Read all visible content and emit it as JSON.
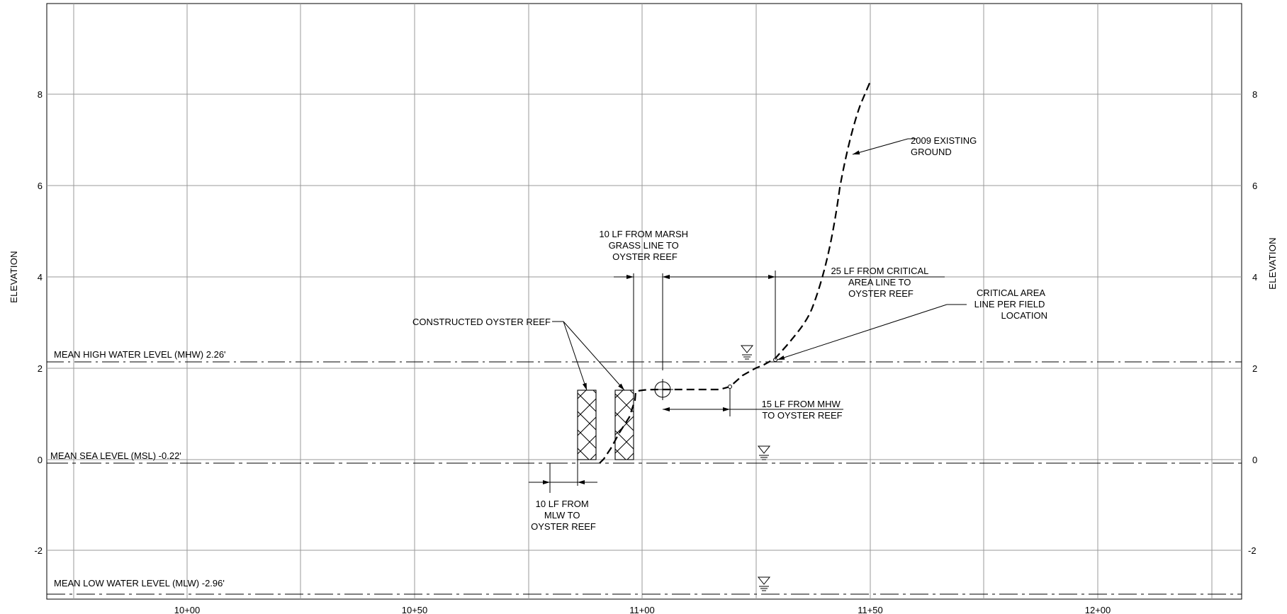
{
  "axes": {
    "left_title": "ELEVATION",
    "right_title": "ELEVATION",
    "y_ticks": [
      {
        "value": 8,
        "label": "8"
      },
      {
        "value": 6,
        "label": "6"
      },
      {
        "value": 4,
        "label": "4"
      },
      {
        "value": 2,
        "label": "2"
      },
      {
        "value": 0,
        "label": "0"
      },
      {
        "value": -2,
        "label": "-2"
      }
    ],
    "x_ticks": [
      {
        "value": 1000,
        "label": "10+00"
      },
      {
        "value": 1050,
        "label": "10+50"
      },
      {
        "value": 1100,
        "label": "11+00"
      },
      {
        "value": 1150,
        "label": "11+50"
      },
      {
        "value": 1200,
        "label": "12+00"
      }
    ]
  },
  "water_levels": {
    "mhw": {
      "label": "MEAN HIGH WATER LEVEL (MHW) 2.26'",
      "elevation": 2.26
    },
    "msl": {
      "label": "MEAN SEA LEVEL (MSL) -0.22'",
      "elevation": -0.22
    },
    "mlw": {
      "label": "MEAN LOW WATER LEVEL (MLW) -2.96'",
      "elevation": -2.96
    }
  },
  "callouts": {
    "existing_ground": [
      "2009 EXISTING",
      "GROUND"
    ],
    "marsh_grass": [
      "10 LF FROM MARSH",
      "GRASS LINE TO",
      "OYSTER REEF"
    ],
    "critical_area_dim": [
      "25 LF FROM  CRITICAL",
      "AREA LINE TO",
      "OYSTER REEF"
    ],
    "critical_area_line": [
      "CRITICAL AREA",
      "LINE PER FIELD",
      "LOCATION"
    ],
    "constructed_reef": "CONSTRUCTED OYSTER REEF",
    "mhw_dim": [
      "15 LF FROM MHW",
      "TO OYSTER REEF"
    ],
    "mlw_dim": [
      "10 LF FROM",
      "MLW TO",
      "OYSTER REEF"
    ]
  },
  "colors": {
    "background": "#ffffff",
    "grid": "#9a9a9a",
    "linework": "#000000"
  }
}
